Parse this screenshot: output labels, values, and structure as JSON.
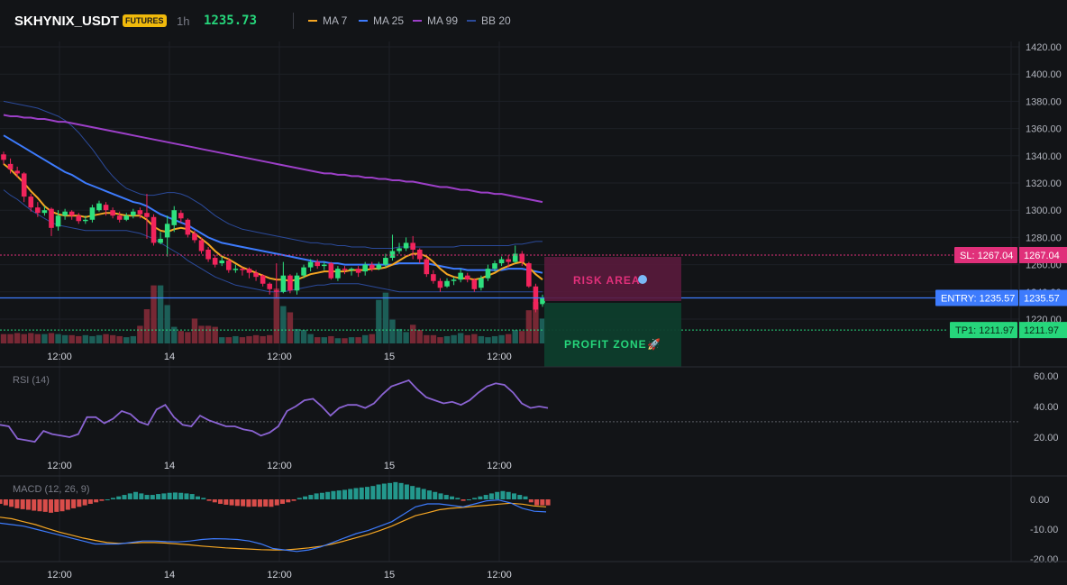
{
  "header": {
    "symbol": "SKHYNIX_USDT",
    "badge": "FUTURES",
    "timeframe": "1h",
    "price": "1235.73",
    "indicators": [
      {
        "label": "MA 7",
        "color": "#f5a623"
      },
      {
        "label": "MA 25",
        "color": "#3d7bfd"
      },
      {
        "label": "MA 99",
        "color": "#9c3fc7"
      },
      {
        "label": "BB 20",
        "color": "#2b4a9a"
      }
    ]
  },
  "colors": {
    "up": "#26a69a",
    "down": "#ef3b64",
    "bg": "#121417"
  },
  "chart_data": [
    {
      "type": "candlestick",
      "title": "SKHYNIX_USDT",
      "ylim": [
        1200,
        1420
      ],
      "yticks": [
        "1420.00",
        "1400.00",
        "1380.00",
        "1360.00",
        "1340.00",
        "1320.00",
        "1300.00",
        "1280.00",
        "1260.00",
        "1240.00",
        "1220.00"
      ],
      "xtick_labels": [
        "12:00",
        "14",
        "12:00",
        "15",
        "12:00"
      ],
      "candles": [
        [
          1341,
          1337,
          1343,
          1334
        ],
        [
          1334,
          1330,
          1338,
          1327
        ],
        [
          1329,
          1327,
          1332,
          1324
        ],
        [
          1327,
          1310,
          1328,
          1306
        ],
        [
          1310,
          1302,
          1312,
          1299
        ],
        [
          1302,
          1298,
          1306,
          1295
        ],
        [
          1298,
          1300,
          1303,
          1296
        ],
        [
          1301,
          1287,
          1302,
          1281
        ],
        [
          1288,
          1296,
          1300,
          1285
        ],
        [
          1296,
          1299,
          1301,
          1293
        ],
        [
          1299,
          1296,
          1300,
          1293
        ],
        [
          1296,
          1292,
          1298,
          1290
        ],
        [
          1292,
          1293,
          1296,
          1290
        ],
        [
          1293,
          1302,
          1304,
          1291
        ],
        [
          1300,
          1305,
          1307,
          1299
        ],
        [
          1304,
          1300,
          1306,
          1296
        ],
        [
          1300,
          1296,
          1302,
          1294
        ],
        [
          1296,
          1293,
          1299,
          1291
        ],
        [
          1293,
          1296,
          1298,
          1292
        ],
        [
          1296,
          1299,
          1301,
          1294
        ],
        [
          1300,
          1297,
          1302,
          1294
        ],
        [
          1298,
          1295,
          1312,
          1279
        ],
        [
          1295,
          1276,
          1297,
          1274
        ],
        [
          1276,
          1279,
          1284,
          1275
        ],
        [
          1280,
          1290,
          1296,
          1266
        ],
        [
          1289,
          1300,
          1303,
          1284
        ],
        [
          1298,
          1294,
          1300,
          1291
        ],
        [
          1293,
          1282,
          1294,
          1280
        ],
        [
          1283,
          1278,
          1285,
          1276
        ],
        [
          1278,
          1270,
          1280,
          1268
        ],
        [
          1271,
          1264,
          1273,
          1262
        ],
        [
          1265,
          1260,
          1267,
          1258
        ],
        [
          1261,
          1263,
          1266,
          1259
        ],
        [
          1263,
          1256,
          1265,
          1254
        ],
        [
          1256,
          1257,
          1260,
          1254
        ],
        [
          1257,
          1256,
          1258,
          1252
        ],
        [
          1257,
          1254,
          1258,
          1250
        ],
        [
          1254,
          1251,
          1256,
          1248
        ],
        [
          1252,
          1246,
          1253,
          1244
        ],
        [
          1246,
          1242,
          1247,
          1238
        ],
        [
          1241,
          1240,
          1261,
          1236
        ],
        [
          1240,
          1252,
          1262,
          1239
        ],
        [
          1252,
          1241,
          1253,
          1239
        ],
        [
          1241,
          1252,
          1254,
          1238
        ],
        [
          1252,
          1258,
          1260,
          1250
        ],
        [
          1258,
          1262,
          1264,
          1255
        ],
        [
          1262,
          1259,
          1264,
          1257
        ],
        [
          1259,
          1260,
          1262,
          1256
        ],
        [
          1261,
          1250,
          1262,
          1249
        ],
        [
          1250,
          1257,
          1259,
          1248
        ],
        [
          1257,
          1256,
          1259,
          1253
        ],
        [
          1256,
          1257,
          1258,
          1252
        ],
        [
          1257,
          1254,
          1259,
          1251
        ],
        [
          1255,
          1260,
          1262,
          1252
        ],
        [
          1260,
          1257,
          1262,
          1255
        ],
        [
          1257,
          1260,
          1262,
          1256
        ],
        [
          1260,
          1265,
          1268,
          1258
        ],
        [
          1265,
          1270,
          1282,
          1263
        ],
        [
          1270,
          1272,
          1276,
          1268
        ],
        [
          1272,
          1276,
          1280,
          1270
        ],
        [
          1276,
          1271,
          1281,
          1264
        ],
        [
          1271,
          1264,
          1272,
          1261
        ],
        [
          1264,
          1253,
          1265,
          1251
        ],
        [
          1253,
          1248,
          1256,
          1246
        ],
        [
          1248,
          1243,
          1250,
          1240
        ],
        [
          1244,
          1248,
          1250,
          1243
        ],
        [
          1248,
          1249,
          1251,
          1245
        ],
        [
          1249,
          1254,
          1257,
          1247
        ],
        [
          1252,
          1249,
          1254,
          1247
        ],
        [
          1249,
          1242,
          1250,
          1240
        ],
        [
          1243,
          1250,
          1252,
          1241
        ],
        [
          1250,
          1257,
          1260,
          1248
        ],
        [
          1257,
          1261,
          1263,
          1255
        ],
        [
          1261,
          1264,
          1266,
          1259
        ],
        [
          1264,
          1262,
          1267,
          1258
        ],
        [
          1262,
          1268,
          1274,
          1261
        ],
        [
          1268,
          1262,
          1270,
          1259
        ],
        [
          1261,
          1244,
          1262,
          1243
        ],
        [
          1244,
          1227,
          1246,
          1225
        ],
        [
          1231,
          1236,
          1238,
          1229
        ]
      ],
      "volume": [
        9,
        9,
        10,
        9,
        10,
        9,
        9,
        10,
        9,
        8,
        8,
        7,
        8,
        7,
        8,
        9,
        8,
        7,
        6,
        7,
        17,
        33,
        56,
        56,
        37,
        16,
        12,
        11,
        24,
        17,
        17,
        16,
        6,
        6,
        7,
        6,
        7,
        8,
        7,
        8,
        53,
        36,
        30,
        14,
        13,
        9,
        6,
        6,
        7,
        5,
        5,
        6,
        6,
        8,
        9,
        42,
        49,
        23,
        14,
        11,
        18,
        13,
        8,
        8,
        6,
        7,
        8,
        10,
        8,
        9,
        7,
        6,
        7,
        8,
        9,
        13,
        12,
        32,
        40,
        24
      ],
      "ma7": [
        1334,
        1330,
        1325,
        1320,
        1314,
        1309,
        1303,
        1299,
        1297,
        1296,
        1296,
        1296,
        1295,
        1296,
        1297,
        1298,
        1298,
        1297,
        1296,
        1296,
        1296,
        1293,
        1288,
        1285,
        1284,
        1286,
        1287,
        1286,
        1283,
        1279,
        1275,
        1270,
        1266,
        1264,
        1261,
        1258,
        1256,
        1254,
        1252,
        1250,
        1249,
        1249,
        1248,
        1249,
        1251,
        1253,
        1254,
        1255,
        1255,
        1255,
        1255,
        1256,
        1256,
        1256,
        1257,
        1257,
        1258,
        1260,
        1263,
        1266,
        1268,
        1268,
        1266,
        1262,
        1257,
        1253,
        1251,
        1250,
        1250,
        1249,
        1250,
        1252,
        1254,
        1257,
        1259,
        1261,
        1262,
        1258,
        1253,
        1249
      ],
      "ma25": [
        1355,
        1352,
        1349,
        1346,
        1343,
        1340,
        1337,
        1334,
        1331,
        1328,
        1326,
        1323,
        1320,
        1318,
        1316,
        1314,
        1312,
        1310,
        1308,
        1306,
        1305,
        1303,
        1300,
        1297,
        1295,
        1293,
        1291,
        1289,
        1286,
        1283,
        1280,
        1278,
        1276,
        1275,
        1274,
        1273,
        1272,
        1271,
        1270,
        1269,
        1268,
        1267,
        1266,
        1265,
        1264,
        1263,
        1262,
        1262,
        1261,
        1261,
        1260,
        1260,
        1260,
        1260,
        1260,
        1260,
        1260,
        1260,
        1261,
        1261,
        1261,
        1261,
        1261,
        1260,
        1259,
        1258,
        1257,
        1257,
        1256,
        1256,
        1256,
        1256,
        1256,
        1256,
        1257,
        1257,
        1257,
        1256,
        1255,
        1254
      ],
      "ma99": [
        1370,
        1369,
        1369,
        1368,
        1368,
        1367,
        1367,
        1366,
        1365,
        1365,
        1364,
        1363,
        1362,
        1361,
        1360,
        1359,
        1358,
        1357,
        1356,
        1355,
        1354,
        1353,
        1352,
        1351,
        1350,
        1349,
        1348,
        1347,
        1346,
        1345,
        1344,
        1343,
        1342,
        1341,
        1340,
        1339,
        1338,
        1337,
        1336,
        1335,
        1334,
        1333,
        1332,
        1331,
        1330,
        1329,
        1328,
        1327,
        1327,
        1326,
        1326,
        1325,
        1325,
        1324,
        1324,
        1323,
        1323,
        1322,
        1322,
        1321,
        1321,
        1320,
        1319,
        1318,
        1317,
        1317,
        1316,
        1315,
        1315,
        1314,
        1313,
        1313,
        1312,
        1312,
        1311,
        1310,
        1309,
        1308,
        1307,
        1306
      ],
      "bb_upper": [
        1380,
        1379,
        1378,
        1377,
        1376,
        1375,
        1373,
        1371,
        1369,
        1366,
        1362,
        1357,
        1351,
        1345,
        1338,
        1331,
        1325,
        1320,
        1316,
        1314,
        1312,
        1311,
        1311,
        1312,
        1313,
        1313,
        1312,
        1310,
        1307,
        1304,
        1300,
        1296,
        1293,
        1290,
        1288,
        1286,
        1285,
        1284,
        1283,
        1282,
        1281,
        1280,
        1279,
        1278,
        1277,
        1276,
        1276,
        1275,
        1275,
        1274,
        1274,
        1273,
        1273,
        1273,
        1272,
        1272,
        1272,
        1272,
        1273,
        1273,
        1273,
        1273,
        1273,
        1273,
        1273,
        1273,
        1273,
        1274,
        1274,
        1274,
        1274,
        1274,
        1274,
        1274,
        1274,
        1275,
        1275,
        1276,
        1277,
        1277
      ],
      "bb_lower": [
        1315,
        1311,
        1308,
        1304,
        1300,
        1297,
        1294,
        1291,
        1289,
        1288,
        1287,
        1286,
        1285,
        1285,
        1285,
        1285,
        1285,
        1285,
        1285,
        1284,
        1283,
        1281,
        1279,
        1276,
        1273,
        1270,
        1267,
        1263,
        1260,
        1257,
        1254,
        1251,
        1249,
        1247,
        1245,
        1244,
        1243,
        1242,
        1241,
        1240,
        1240,
        1240,
        1241,
        1242,
        1243,
        1244,
        1245,
        1245,
        1246,
        1246,
        1246,
        1246,
        1246,
        1245,
        1244,
        1243,
        1242,
        1241,
        1240,
        1240,
        1240,
        1240,
        1240,
        1240,
        1240,
        1240,
        1240,
        1240,
        1240,
        1240,
        1240,
        1240,
        1240,
        1240,
        1240,
        1240,
        1240,
        1240,
        1240,
        1240
      ]
    },
    {
      "type": "line",
      "title": "RSI (14)",
      "ylim": [
        10,
        64
      ],
      "yticks": [
        "60.00",
        "40.00",
        "20.00"
      ],
      "xtick_labels": [
        "12:00",
        "14",
        "12:00",
        "15",
        "12:00"
      ],
      "values": [
        28,
        27,
        19,
        18,
        17,
        24,
        22,
        21,
        20,
        22,
        33,
        33,
        29,
        32,
        37,
        35,
        30,
        28,
        38,
        41,
        33,
        28,
        27,
        34,
        31,
        29,
        27,
        27,
        25,
        24,
        21,
        23,
        27,
        37,
        40,
        44,
        45,
        40,
        34,
        39,
        41,
        41,
        39,
        42,
        48,
        53,
        55,
        57,
        51,
        46,
        44,
        42,
        43,
        41,
        44,
        49,
        53,
        55,
        54,
        49,
        42,
        39,
        40,
        39
      ]
    },
    {
      "type": "bar",
      "title": "MACD (12, 26, 9)",
      "ylim": [
        -20,
        7
      ],
      "yticks": [
        "0.00",
        "-10.00",
        "-20.00"
      ],
      "xtick_labels": [
        "12:00",
        "14",
        "12:00",
        "15",
        "12:00"
      ],
      "histogram": [
        -1.5,
        -2,
        -2.5,
        -3,
        -3.3,
        -3.5,
        -3.8,
        -4,
        -4.2,
        -4.5,
        -4.2,
        -4,
        -3.5,
        -3,
        -2.5,
        -2,
        -1.5,
        -1,
        -0.5,
        0,
        0.5,
        1,
        1.5,
        2,
        2.5,
        2,
        1.5,
        1.5,
        1.8,
        2,
        2.2,
        2.3,
        2.2,
        2,
        1.8,
        1,
        0.5,
        -0.5,
        -1,
        -1.5,
        -1.8,
        -2,
        -2.2,
        -2.3,
        -2.5,
        -2.4,
        -2.5,
        -2.4,
        -2.5,
        -2,
        -1.5,
        -1,
        -0.5,
        0.5,
        1,
        1.5,
        2,
        2.2,
        2.5,
        2.8,
        3,
        3.2,
        3.5,
        3.8,
        4,
        4.2,
        4.5,
        5,
        5.3,
        5.5,
        5.8,
        5.5,
        5,
        4.5,
        4,
        3.5,
        3,
        2.5,
        2,
        1.5,
        1,
        0.5,
        -0.5,
        0,
        0.5,
        1,
        1.5,
        2,
        2.5,
        2.8,
        2.5,
        2,
        1.5,
        1,
        -1,
        -2,
        -2,
        -2
      ],
      "macd": [
        -8,
        -8.5,
        -9,
        -10,
        -11,
        -12,
        -13,
        -14,
        -15,
        -15,
        -15,
        -14.5,
        -14,
        -14,
        -14.2,
        -14.3,
        -14,
        -13.5,
        -13.2,
        -13.3,
        -13.5,
        -14,
        -15,
        -16.5,
        -17,
        -17.5,
        -17,
        -16,
        -14.5,
        -13,
        -11.5,
        -10.5,
        -9,
        -7.5,
        -5,
        -2.5,
        -1.5,
        -1.5,
        -2,
        -2.5,
        -1.5,
        -0.5,
        -0.2,
        -1.2,
        -3,
        -4,
        -4.2
      ],
      "signal": [
        -6,
        -6.5,
        -7.5,
        -8.5,
        -9.8,
        -11,
        -12,
        -13,
        -13.8,
        -14.5,
        -14.8,
        -14.7,
        -14.5,
        -14.5,
        -14.7,
        -15,
        -15.3,
        -15.7,
        -16,
        -16.3,
        -16.5,
        -16.7,
        -16.9,
        -17,
        -17,
        -16.7,
        -16.3,
        -15.8,
        -15,
        -14,
        -12.9,
        -11.8,
        -10.5,
        -9,
        -7.2,
        -5.5,
        -4.5,
        -3.5,
        -3,
        -2.7,
        -2.3,
        -2,
        -1.6,
        -1.3,
        -1.6,
        -2.2,
        -2.5
      ]
    }
  ],
  "ticks": {
    "rsi_mid": 30,
    "rsi_level_label": "30"
  },
  "levels": {
    "sl": {
      "label": "SL: 1267.04",
      "value_label": "1267.04",
      "value": 1267.04
    },
    "entry": {
      "label": "ENTRY: 1235.57",
      "value_label": "1235.57",
      "value": 1235.57
    },
    "tp1": {
      "label": "TP1: 1211.97",
      "value_label": "1211.97",
      "value": 1211.97
    }
  },
  "zones": {
    "risk_label": "RISK AREA",
    "profit_label": "PROFIT ZONE"
  }
}
